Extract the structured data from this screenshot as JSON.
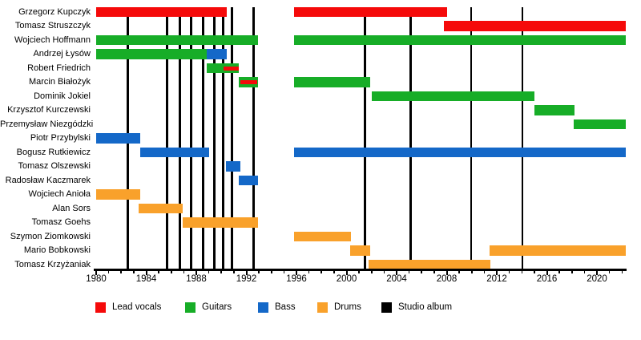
{
  "chart_data": {
    "type": "timeline",
    "description": "Band members timeline (gantt-style) with studio album markers",
    "x_axis": {
      "start": 1980,
      "end": 2022.3,
      "major_tick_years": [
        1980,
        1984,
        1988,
        1992,
        1996,
        2000,
        2004,
        2008,
        2012,
        2016,
        2020
      ],
      "minor_tick_interval": 1
    },
    "colors": {
      "lead_vocals": "#f50a0a",
      "guitars": "#17ad27",
      "bass": "#1468c8",
      "drums": "#f9a12b",
      "studio_album": "#000000"
    },
    "legend": [
      {
        "role": "lead_vocals",
        "label": "Lead vocals"
      },
      {
        "role": "guitars",
        "label": "Guitars"
      },
      {
        "role": "bass",
        "label": "Bass"
      },
      {
        "role": "drums",
        "label": "Drums"
      },
      {
        "role": "studio_album",
        "label": "Studio album"
      }
    ],
    "albums": {
      "label": "Studio album",
      "years": [
        1982.55,
        1985.65,
        1986.7,
        1987.6,
        1988.55,
        1989.45,
        1990.15,
        1990.85,
        1992.6,
        2001.45,
        2005.1,
        2009.95,
        2014.05
      ]
    },
    "members": [
      {
        "name": "Grzegorz Kupczyk",
        "segments": [
          {
            "role": "lead_vocals",
            "start": 1980,
            "end": 1990.4
          },
          {
            "role": "lead_vocals",
            "start": 1995.8,
            "end": 2008.0
          }
        ]
      },
      {
        "name": "Tomasz Struszczyk",
        "segments": [
          {
            "role": "lead_vocals",
            "start": 2007.8,
            "end": 2022.3
          }
        ]
      },
      {
        "name": "Wojciech Hoffmann",
        "segments": [
          {
            "role": "guitars",
            "start": 1980,
            "end": 1992.9
          },
          {
            "role": "guitars",
            "start": 1995.8,
            "end": 2022.3
          }
        ]
      },
      {
        "name": "Andrzej Łysów",
        "segments": [
          {
            "role": "guitars",
            "start": 1980,
            "end": 1988.8
          },
          {
            "role": "bass",
            "start": 1988.8,
            "end": 1990.4
          }
        ]
      },
      {
        "name": "Robert Friedrich",
        "segments": [
          {
            "role": "guitars",
            "start": 1988.8,
            "end": 1991.4
          }
        ],
        "overlays": [
          {
            "role": "lead_vocals",
            "start": 1990.2,
            "end": 1991.4
          }
        ]
      },
      {
        "name": "Marcin Białożyk",
        "segments": [
          {
            "role": "guitars",
            "start": 1991.4,
            "end": 1992.9
          },
          {
            "role": "guitars",
            "start": 1995.8,
            "end": 2001.9
          }
        ],
        "overlays": [
          {
            "role": "lead_vocals",
            "start": 1991.5,
            "end": 1992.85
          }
        ]
      },
      {
        "name": "Dominik Jokiel",
        "segments": [
          {
            "role": "guitars",
            "start": 2002.0,
            "end": 2015.0
          }
        ]
      },
      {
        "name": "Krzysztof Kurczewski",
        "segments": [
          {
            "role": "guitars",
            "start": 2015.0,
            "end": 2018.2
          }
        ]
      },
      {
        "name": "Przemysław Niezgódzki",
        "segments": [
          {
            "role": "guitars",
            "start": 2018.15,
            "end": 2022.3
          }
        ]
      },
      {
        "name": "Piotr Przybylski",
        "segments": [
          {
            "role": "bass",
            "start": 1980,
            "end": 1983.5
          }
        ]
      },
      {
        "name": "Bogusz Rutkiewicz",
        "segments": [
          {
            "role": "bass",
            "start": 1983.5,
            "end": 1989.0
          },
          {
            "role": "bass",
            "start": 1995.8,
            "end": 2022.3
          }
        ]
      },
      {
        "name": "Tomasz Olszewski",
        "segments": [
          {
            "role": "bass",
            "start": 1990.35,
            "end": 1991.5
          }
        ]
      },
      {
        "name": "Radosław Kaczmarek",
        "segments": [
          {
            "role": "bass",
            "start": 1991.4,
            "end": 1992.9
          }
        ]
      },
      {
        "name": "Wojciech Anioła",
        "segments": [
          {
            "role": "drums",
            "start": 1980,
            "end": 1983.5
          }
        ]
      },
      {
        "name": "Alan Sors",
        "segments": [
          {
            "role": "drums",
            "start": 1983.4,
            "end": 1986.9
          }
        ]
      },
      {
        "name": "Tomasz Goehs",
        "segments": [
          {
            "role": "drums",
            "start": 1986.9,
            "end": 1992.95
          }
        ]
      },
      {
        "name": "Szymon Ziomkowski",
        "segments": [
          {
            "role": "drums",
            "start": 1995.8,
            "end": 2000.35
          }
        ]
      },
      {
        "name": "Mario Bobkowski",
        "segments": [
          {
            "role": "drums",
            "start": 2000.3,
            "end": 2001.9
          },
          {
            "role": "drums",
            "start": 2011.4,
            "end": 2022.3
          }
        ]
      },
      {
        "name": "Tomasz Krzyżaniak",
        "segments": [
          {
            "role": "drums",
            "start": 2001.75,
            "end": 2011.5
          }
        ]
      }
    ]
  }
}
